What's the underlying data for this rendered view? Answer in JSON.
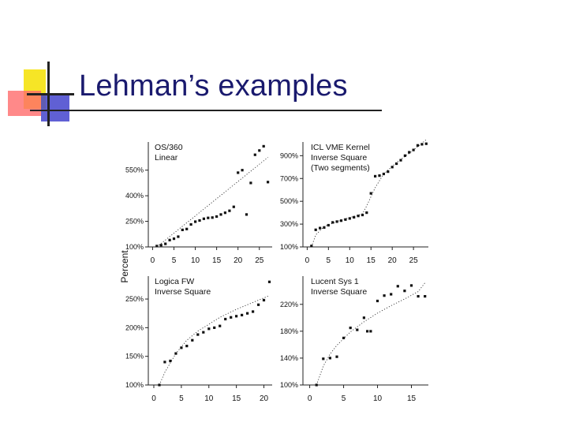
{
  "slide": {
    "title": "Lehman’s examples",
    "title_color": "#1a1a6e",
    "shared_ylabel": "Percent"
  },
  "chart_data": [
    {
      "type": "scatter",
      "legend": [
        "OS/360",
        "Linear"
      ],
      "xticks": [
        0,
        5,
        10,
        15,
        20,
        25
      ],
      "xlim": [
        -1,
        28
      ],
      "yticks": [
        100,
        250,
        400,
        550
      ],
      "ytick_labels": [
        "100%",
        "250%",
        "400%",
        "550%"
      ],
      "ylim": [
        100,
        715
      ],
      "points": [
        [
          1,
          105
        ],
        [
          2,
          110
        ],
        [
          3,
          118
        ],
        [
          4,
          140
        ],
        [
          5,
          148
        ],
        [
          6,
          160
        ],
        [
          7,
          200
        ],
        [
          8,
          205
        ],
        [
          9,
          232
        ],
        [
          10,
          248
        ],
        [
          11,
          255
        ],
        [
          12,
          265
        ],
        [
          13,
          270
        ],
        [
          14,
          272
        ],
        [
          15,
          278
        ],
        [
          16,
          290
        ],
        [
          17,
          300
        ],
        [
          18,
          312
        ],
        [
          19,
          335
        ],
        [
          20,
          535
        ],
        [
          21,
          550
        ],
        [
          22,
          290
        ],
        [
          23,
          475
        ],
        [
          24,
          640
        ],
        [
          25,
          665
        ],
        [
          26,
          690
        ],
        [
          27,
          480
        ]
      ],
      "trend": [
        [
          1,
          100
        ],
        [
          27,
          625
        ]
      ]
    },
    {
      "type": "scatter",
      "legend": [
        "ICL VME Kernel",
        "Inverse Square",
        "(Two segments)"
      ],
      "xticks": [
        0,
        5,
        10,
        15,
        20,
        25
      ],
      "xlim": [
        -1,
        28.5
      ],
      "yticks": [
        100,
        300,
        500,
        700,
        900
      ],
      "ytick_labels": [
        "100%",
        "300%",
        "500%",
        "700%",
        "900%"
      ],
      "ylim": [
        100,
        1020
      ],
      "points": [
        [
          1,
          108
        ],
        [
          2,
          250
        ],
        [
          3,
          265
        ],
        [
          4,
          270
        ],
        [
          5,
          290
        ],
        [
          6,
          315
        ],
        [
          7,
          322
        ],
        [
          8,
          330
        ],
        [
          9,
          340
        ],
        [
          10,
          350
        ],
        [
          11,
          360
        ],
        [
          12,
          372
        ],
        [
          13,
          380
        ],
        [
          14,
          400
        ],
        [
          15,
          570
        ],
        [
          16,
          720
        ],
        [
          17,
          725
        ],
        [
          18,
          740
        ],
        [
          19,
          760
        ],
        [
          20,
          800
        ],
        [
          21,
          830
        ],
        [
          22,
          860
        ],
        [
          23,
          900
        ],
        [
          24,
          930
        ],
        [
          25,
          950
        ],
        [
          26,
          990
        ],
        [
          27,
          1000
        ],
        [
          28,
          1005
        ]
      ],
      "trend": [
        [
          1,
          100
        ],
        [
          2,
          205
        ],
        [
          4,
          280
        ],
        [
          8,
          335
        ],
        [
          13,
          390
        ],
        [
          14,
          460
        ],
        [
          16,
          620
        ],
        [
          18,
          740
        ],
        [
          21,
          840
        ],
        [
          24,
          920
        ],
        [
          28,
          1040
        ]
      ]
    },
    {
      "type": "scatter",
      "legend": [
        "Logica FW",
        "Inverse Square"
      ],
      "xticks": [
        0,
        5,
        10,
        15,
        20
      ],
      "xlim": [
        -1,
        21.5
      ],
      "yticks": [
        100,
        150,
        200,
        250
      ],
      "ytick_labels": [
        "100%",
        "150%",
        "200%",
        "250%"
      ],
      "ylim": [
        100,
        290
      ],
      "points": [
        [
          1,
          100
        ],
        [
          2,
          140
        ],
        [
          3,
          142
        ],
        [
          4,
          155
        ],
        [
          5,
          165
        ],
        [
          6,
          168
        ],
        [
          7,
          178
        ],
        [
          8,
          188
        ],
        [
          9,
          192
        ],
        [
          10,
          198
        ],
        [
          11,
          200
        ],
        [
          12,
          203
        ],
        [
          13,
          215
        ],
        [
          14,
          218
        ],
        [
          15,
          220
        ],
        [
          16,
          222
        ],
        [
          17,
          225
        ],
        [
          18,
          228
        ],
        [
          19,
          240
        ],
        [
          20,
          248
        ],
        [
          21,
          280
        ]
      ],
      "trend": [
        [
          1,
          100
        ],
        [
          2,
          122
        ],
        [
          4,
          155
        ],
        [
          6,
          178
        ],
        [
          8,
          194
        ],
        [
          10,
          206
        ],
        [
          12,
          218
        ],
        [
          15,
          232
        ],
        [
          18,
          244
        ],
        [
          21,
          256
        ]
      ]
    },
    {
      "type": "scatter",
      "legend": [
        "Lucent Sys 1",
        "Inverse Square"
      ],
      "xticks": [
        0,
        5,
        10,
        15
      ],
      "xlim": [
        -1,
        17.5
      ],
      "yticks": [
        100,
        140,
        180,
        220
      ],
      "ytick_labels": [
        "100%",
        "140%",
        "180%",
        "220%"
      ],
      "ylim": [
        100,
        262
      ],
      "points": [
        [
          1,
          100
        ],
        [
          2,
          139
        ],
        [
          3,
          140
        ],
        [
          4,
          142
        ],
        [
          5,
          170
        ],
        [
          6,
          185
        ],
        [
          7,
          182
        ],
        [
          8,
          200
        ],
        [
          8.5,
          180
        ],
        [
          9,
          180
        ],
        [
          10,
          225
        ],
        [
          11,
          233
        ],
        [
          12,
          235
        ],
        [
          13,
          247
        ],
        [
          14,
          240
        ],
        [
          15,
          248
        ],
        [
          16,
          232
        ],
        [
          17,
          232
        ]
      ],
      "trend": [
        [
          1,
          100
        ],
        [
          2,
          128
        ],
        [
          3,
          146
        ],
        [
          4,
          159
        ],
        [
          6,
          179
        ],
        [
          8,
          194
        ],
        [
          10,
          207
        ],
        [
          12,
          218
        ],
        [
          14,
          228
        ],
        [
          16,
          239
        ],
        [
          17,
          252
        ]
      ]
    }
  ]
}
